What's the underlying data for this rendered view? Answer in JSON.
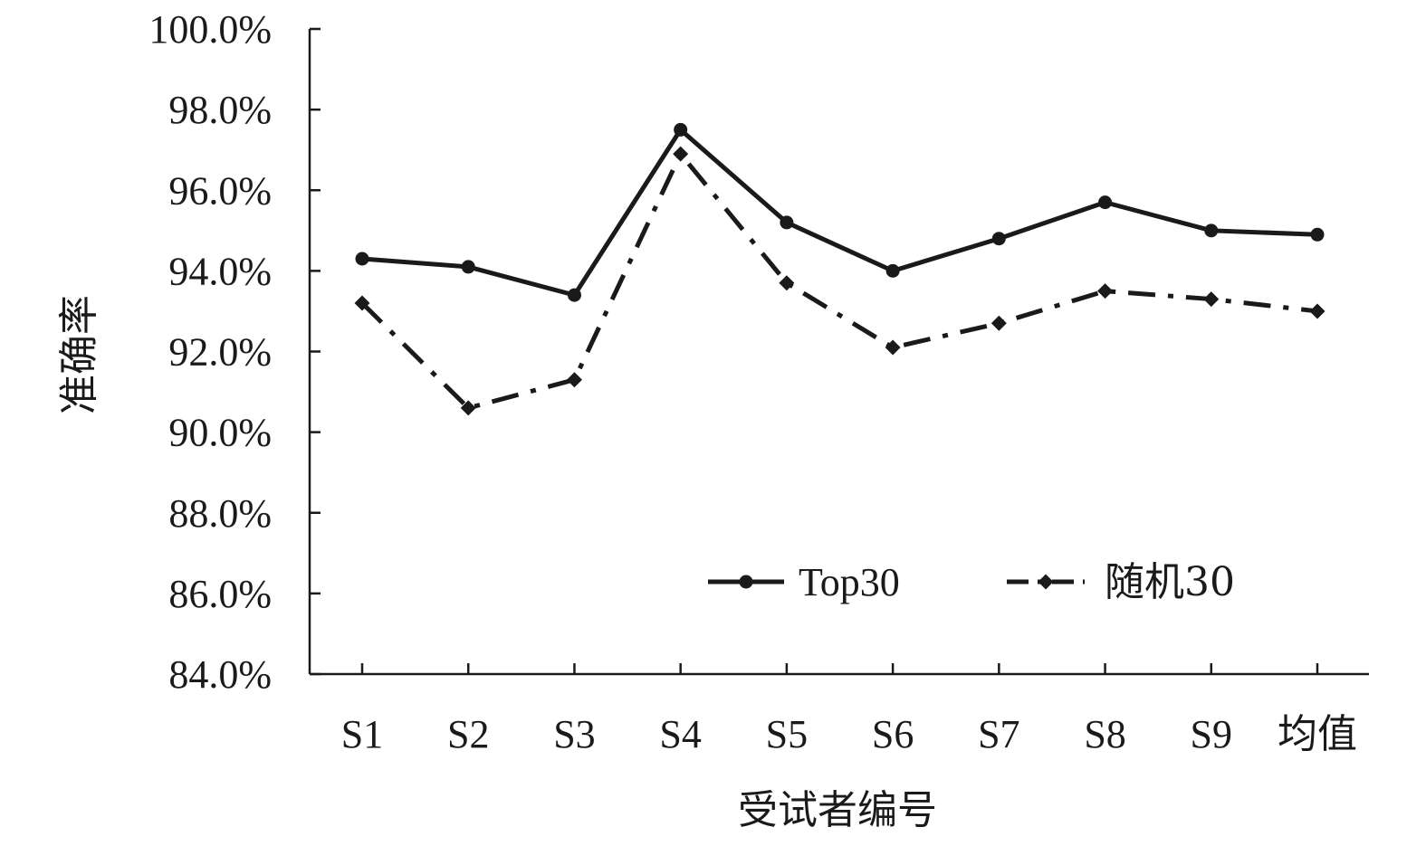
{
  "chart_data": {
    "type": "line",
    "categories": [
      "S1",
      "S2",
      "S3",
      "S4",
      "S5",
      "S6",
      "S7",
      "S8",
      "S9",
      "均值"
    ],
    "series": [
      {
        "name": "Top30",
        "values": [
          94.3,
          94.1,
          93.4,
          97.5,
          95.2,
          94.0,
          94.8,
          95.7,
          95.0,
          94.9
        ],
        "line_style": "solid",
        "marker": "circle",
        "color": "#1a1a1a"
      },
      {
        "name": "随机30",
        "values": [
          93.2,
          90.6,
          91.3,
          96.9,
          93.7,
          92.1,
          92.7,
          93.5,
          93.3,
          93.0
        ],
        "line_style": "dash-dot",
        "marker": "diamond",
        "color": "#1a1a1a"
      }
    ],
    "xlabel": "受试者编号",
    "ylabel": "准确率",
    "ylim": [
      84.0,
      100.0
    ],
    "y_tick_step": 2.0,
    "y_tick_format": "percent_1dp",
    "grid": false,
    "legend_position": "lower-right"
  }
}
